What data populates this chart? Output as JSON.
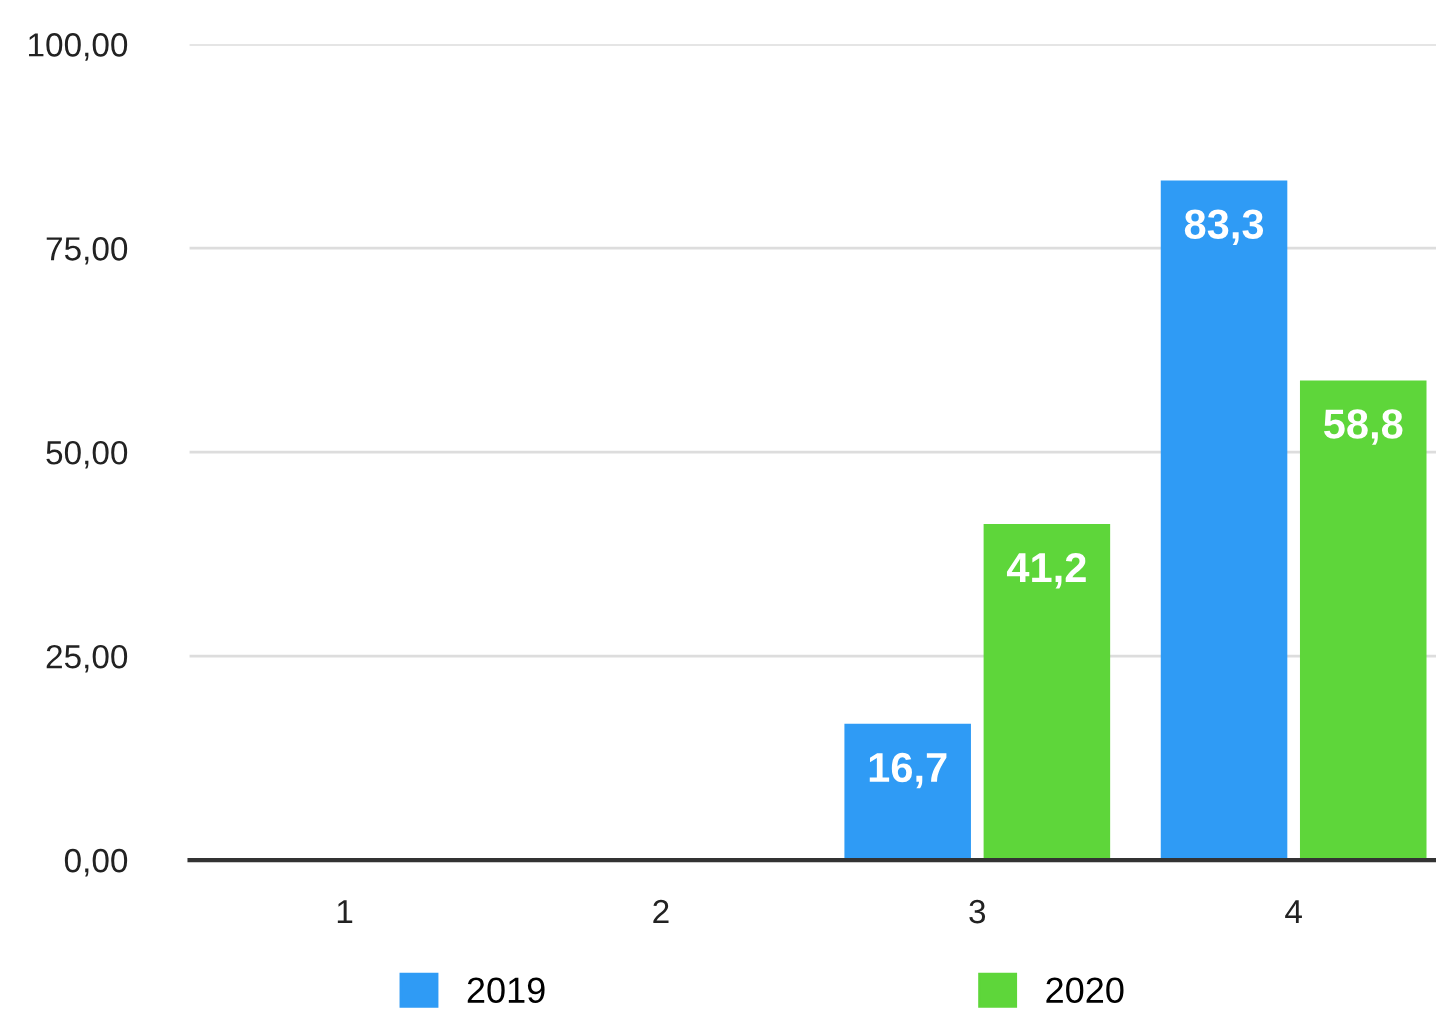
{
  "chart_data": {
    "type": "bar",
    "categories": [
      "1",
      "2",
      "3",
      "4"
    ],
    "series": [
      {
        "name": "2019",
        "color": "#2f9bf5",
        "values": [
          0,
          0,
          16.7,
          83.3
        ],
        "value_labels": [
          null,
          null,
          "16,7",
          "83,3"
        ]
      },
      {
        "name": "2020",
        "color": "#5ed63a",
        "values": [
          0,
          0,
          41.2,
          58.8
        ],
        "value_labels": [
          null,
          null,
          "41,2",
          "58,8"
        ]
      }
    ],
    "ylim": [
      0,
      100
    ],
    "yticks": [
      {
        "value": 0,
        "label": "0,00"
      },
      {
        "value": 25,
        "label": "25,00"
      },
      {
        "value": 50,
        "label": "50,00"
      },
      {
        "value": 75,
        "label": "75,00"
      },
      {
        "value": 100,
        "label": "100,00"
      }
    ],
    "grid": "y",
    "legend": "bottom"
  }
}
